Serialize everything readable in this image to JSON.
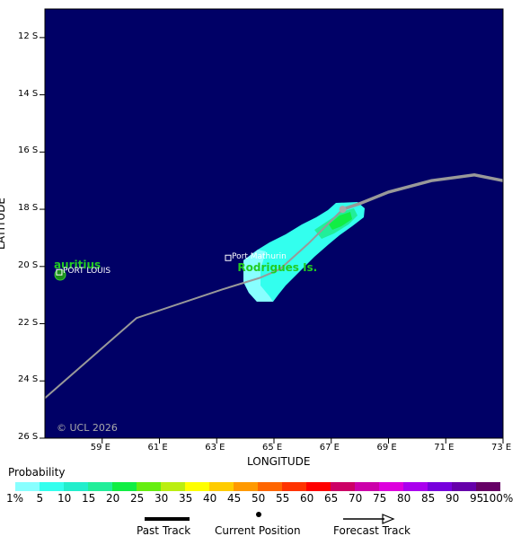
{
  "map": {
    "x_axis_title": "LONGITUDE",
    "y_axis_title": "LATITUDE",
    "lon_range": [
      57.0,
      73.0
    ],
    "lat_range": [
      11.0,
      26.0
    ],
    "x_ticks": [
      "59 E",
      "61 E",
      "63 E",
      "65 E",
      "67 E",
      "69 E",
      "71 E",
      "73 E"
    ],
    "y_ticks": [
      "12 S",
      "14 S",
      "16 S",
      "18 S",
      "20 S",
      "22 S",
      "24 S",
      "26 S"
    ],
    "background_color": "#000066",
    "copyright": "© UCL 2026"
  },
  "places": [
    {
      "name": "auritius",
      "lon": 57.5,
      "lat": 20.3,
      "color": "#22cc22",
      "kind": "island-name"
    },
    {
      "name": "PORT LOUIS",
      "lon": 57.5,
      "lat": 20.2,
      "color": "#ffffff",
      "kind": "town"
    },
    {
      "name": "Port Mathurin",
      "lon": 63.4,
      "lat": 19.7,
      "color": "#ffffff",
      "kind": "town"
    },
    {
      "name": "Rodrigues Is.",
      "lon": 63.6,
      "lat": 20.0,
      "color": "#22cc22",
      "kind": "island-name"
    }
  ],
  "tracks": {
    "past_track": [
      [
        57.0,
        24.6
      ],
      [
        60.2,
        21.8
      ],
      [
        63.2,
        20.8
      ],
      [
        64.5,
        20.4
      ],
      [
        65.2,
        20.1
      ],
      [
        66.2,
        19.2
      ],
      [
        67.4,
        18.0
      ]
    ],
    "forecast_track": [
      [
        67.4,
        18.0
      ],
      [
        68.0,
        17.8
      ],
      [
        69.0,
        17.4
      ],
      [
        70.5,
        17.0
      ],
      [
        72.0,
        16.8
      ],
      [
        73.0,
        17.0
      ]
    ],
    "current_position": [
      67.4,
      18.0
    ]
  },
  "probability_scale": {
    "title": "Probability",
    "labels": [
      "1%",
      "5",
      "10",
      "15",
      "20",
      "25",
      "30",
      "35",
      "40",
      "45",
      "50",
      "55",
      "60",
      "65",
      "70",
      "75",
      "80",
      "85",
      "90",
      "95",
      "100%"
    ],
    "colors": [
      "#88ffff",
      "#33ffee",
      "#22eecc",
      "#22ee99",
      "#11ee44",
      "#66ee11",
      "#bbee11",
      "#ffff00",
      "#ffcc00",
      "#ff9900",
      "#ff6600",
      "#ff3300",
      "#ff0000",
      "#cc0066",
      "#cc00aa",
      "#dd00dd",
      "#aa00ee",
      "#7700dd",
      "#6600aa",
      "#660066"
    ]
  },
  "legend": {
    "past_track": "Past Track",
    "current_position": "Current Position",
    "forecast_track": "Forecast Track"
  }
}
